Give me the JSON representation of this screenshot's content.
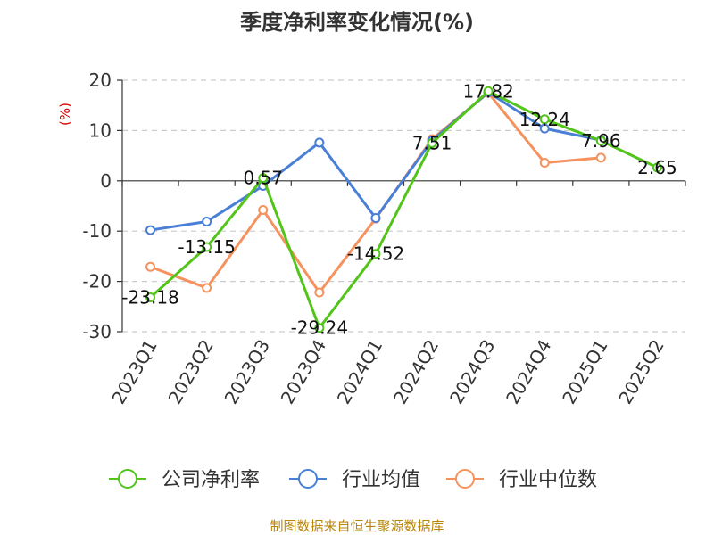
{
  "chart_data": {
    "type": "line",
    "title": "季度净利率变化情况(%)",
    "ylabel": "(%)",
    "xlabel": "",
    "categories": [
      "2023Q1",
      "2023Q2",
      "2023Q3",
      "2023Q4",
      "2024Q1",
      "2024Q2",
      "2024Q3",
      "2024Q4",
      "2025Q1",
      "2025Q2"
    ],
    "ylim": [
      -30,
      20
    ],
    "yticks": [
      20,
      10,
      0,
      -10,
      -20,
      -30
    ],
    "grid": true,
    "legend_position": "bottom",
    "series": [
      {
        "name": "公司净利率",
        "color": "#52c41a",
        "values": [
          -23.18,
          -13.15,
          0.57,
          -29.24,
          -14.52,
          7.51,
          17.82,
          12.24,
          7.96,
          2.65
        ],
        "labels": [
          "-23.18",
          "-13.15",
          "0.57",
          "-29.24",
          "-14.52",
          "7.51",
          "17.82",
          "12.24",
          "7.96",
          "2.65"
        ]
      },
      {
        "name": "行业均值",
        "color": "#4a7fd6",
        "values": [
          -9.8,
          -8.1,
          -1.0,
          7.6,
          -7.4,
          8.0,
          17.6,
          10.4,
          8.1,
          null
        ]
      },
      {
        "name": "行业中位数",
        "color": "#f5925e",
        "values": [
          -17.1,
          -21.3,
          -5.8,
          -22.2,
          -7.5,
          8.3,
          17.5,
          3.6,
          4.6,
          null
        ]
      }
    ]
  },
  "source": "制图数据来自恒生聚源数据库"
}
